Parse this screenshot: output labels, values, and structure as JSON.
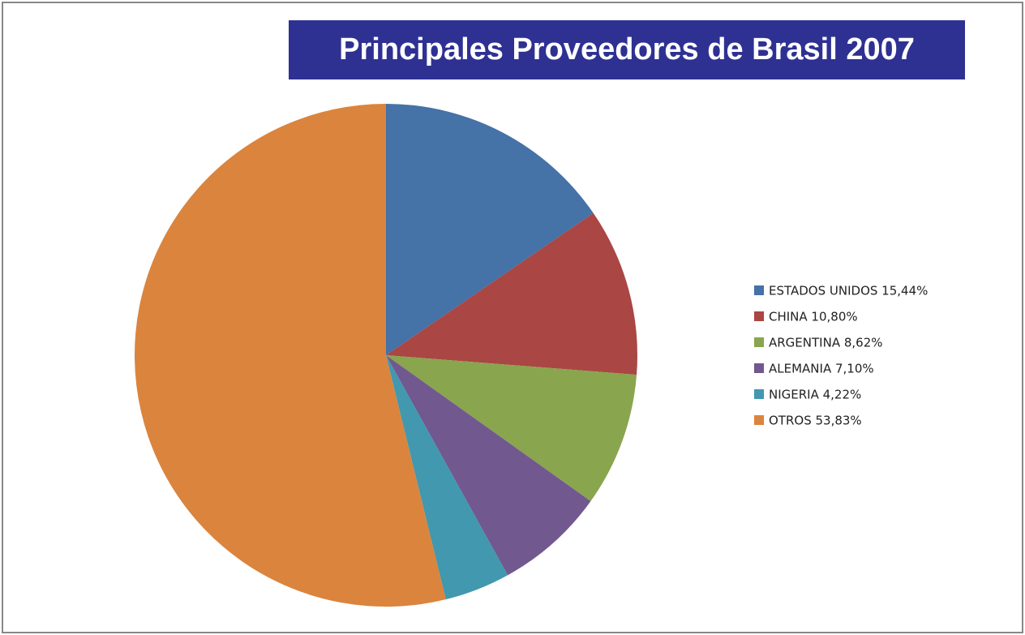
{
  "chart_data": {
    "type": "pie",
    "title": "Principales Proveedores de Brasil 2007",
    "categories": [
      "ESTADOS UNIDOS 15,44%",
      "CHINA 10,80%",
      "ARGENTINA 8,62%",
      "ALEMANIA 7,10%",
      "NIGERIA 4,22%",
      "OTROS 53,83%"
    ],
    "values": [
      15.44,
      10.8,
      8.62,
      7.1,
      4.22,
      53.83
    ],
    "colors": [
      "#4572a7",
      "#aa4643",
      "#89a54e",
      "#71588f",
      "#4198af",
      "#db843d"
    ],
    "legend": "right"
  }
}
